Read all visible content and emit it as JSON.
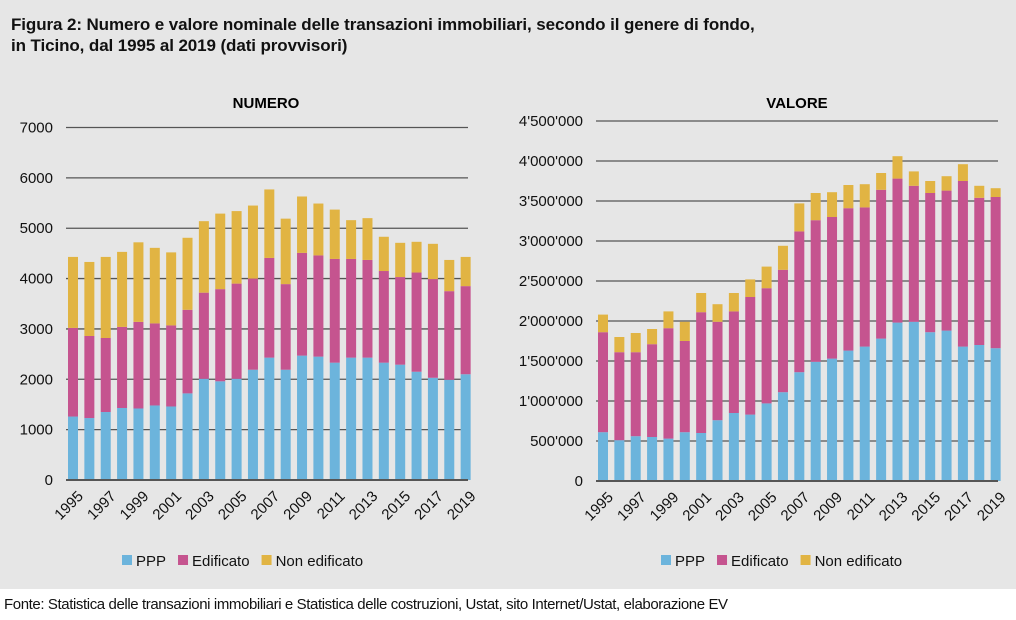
{
  "figure": {
    "title_line1": "Figura 2: Numero e valore nominale delle transazioni immobiliari, secondo il genere di fondo,",
    "title_line2": "in Ticino, dal 1995 al 2019 (dati provvisori)",
    "source": "Fonte: Statistica delle transazioni immobiliari e Statistica delle costruzioni, Ustat, sito Internet/Ustat, elaborazione EV"
  },
  "colors": {
    "PPP": "#6cb4dc",
    "Edificato": "#c5548f",
    "Non edificato": "#e1b443",
    "grid": "#555555",
    "panel": "#e6e6e6"
  },
  "chart_data": [
    {
      "type": "bar",
      "stacked": true,
      "title": "NUMERO",
      "xlabel": "",
      "ylabel": "",
      "ylim": [
        0,
        7000
      ],
      "yticks": [
        0,
        1000,
        2000,
        3000,
        4000,
        5000,
        6000,
        7000
      ],
      "ytick_labels": [
        "0",
        "1000",
        "2000",
        "3000",
        "4000",
        "5000",
        "6000",
        "7000"
      ],
      "grid": true,
      "legend": "bottom-center",
      "categories": [
        "1995",
        "1996",
        "1997",
        "1998",
        "1999",
        "2000",
        "2001",
        "2002",
        "2003",
        "2004",
        "2005",
        "2006",
        "2007",
        "2008",
        "2009",
        "2010",
        "2011",
        "2012",
        "2013",
        "2014",
        "2015",
        "2016",
        "2017",
        "2018",
        "2019"
      ],
      "xtick_labels": [
        "1995",
        "1997",
        "1999",
        "2001",
        "2003",
        "2005",
        "2007",
        "2009",
        "2011",
        "2013",
        "2015",
        "2017",
        "2019"
      ],
      "series": [
        {
          "name": "PPP",
          "values": [
            1260,
            1230,
            1350,
            1430,
            1420,
            1480,
            1460,
            1720,
            2010,
            1960,
            2010,
            2190,
            2430,
            2190,
            2470,
            2450,
            2330,
            2430,
            2430,
            2330,
            2290,
            2150,
            2030,
            1990,
            2100
          ]
        },
        {
          "name": "Edificato",
          "values": [
            1760,
            1630,
            1470,
            1610,
            1720,
            1630,
            1610,
            1660,
            1710,
            1830,
            1890,
            1810,
            1980,
            1700,
            2040,
            2010,
            2060,
            1960,
            1940,
            1820,
            1740,
            1970,
            1960,
            1760,
            1750
          ]
        },
        {
          "name": "Non edificato",
          "values": [
            1410,
            1470,
            1610,
            1490,
            1580,
            1500,
            1450,
            1430,
            1420,
            1500,
            1440,
            1450,
            1360,
            1300,
            1120,
            1030,
            980,
            770,
            830,
            680,
            680,
            610,
            700,
            620,
            580
          ]
        }
      ]
    },
    {
      "type": "bar",
      "stacked": true,
      "title": "VALORE",
      "xlabel": "",
      "ylabel": "",
      "ylim": [
        0,
        4500000
      ],
      "yticks": [
        0,
        500000,
        1000000,
        1500000,
        2000000,
        2500000,
        3000000,
        3500000,
        4000000,
        4500000
      ],
      "ytick_labels": [
        "0",
        "500'000",
        "1'000'000",
        "1'500'000",
        "2'000'000",
        "2'500'000",
        "3'000'000",
        "3'500'000",
        "4'000'000",
        "4'500'000"
      ],
      "grid": true,
      "legend": "bottom-center",
      "categories": [
        "1995",
        "1996",
        "1997",
        "1998",
        "1999",
        "2000",
        "2001",
        "2002",
        "2003",
        "2004",
        "2005",
        "2006",
        "2007",
        "2008",
        "2009",
        "2010",
        "2011",
        "2012",
        "2013",
        "2014",
        "2015",
        "2016",
        "2017",
        "2018",
        "2019"
      ],
      "xtick_labels": [
        "1995",
        "1997",
        "1999",
        "2001",
        "2003",
        "2005",
        "2007",
        "2009",
        "2011",
        "2013",
        "2015",
        "2017",
        "2019"
      ],
      "series": [
        {
          "name": "PPP",
          "values": [
            610000,
            510000,
            560000,
            550000,
            530000,
            610000,
            600000,
            760000,
            850000,
            830000,
            970000,
            1110000,
            1360000,
            1490000,
            1530000,
            1630000,
            1680000,
            1780000,
            1980000,
            1990000,
            1860000,
            1880000,
            1680000,
            1700000,
            1660000
          ]
        },
        {
          "name": "Edificato",
          "values": [
            1250000,
            1100000,
            1050000,
            1160000,
            1380000,
            1140000,
            1510000,
            1230000,
            1270000,
            1470000,
            1440000,
            1530000,
            1760000,
            1770000,
            1770000,
            1780000,
            1740000,
            1860000,
            1800000,
            1700000,
            1740000,
            1750000,
            2070000,
            1840000,
            1890000
          ]
        },
        {
          "name": "Non edificato",
          "values": [
            220000,
            190000,
            240000,
            190000,
            210000,
            240000,
            240000,
            220000,
            230000,
            220000,
            270000,
            300000,
            350000,
            340000,
            310000,
            290000,
            290000,
            210000,
            280000,
            180000,
            150000,
            180000,
            210000,
            150000,
            110000
          ]
        }
      ]
    }
  ]
}
